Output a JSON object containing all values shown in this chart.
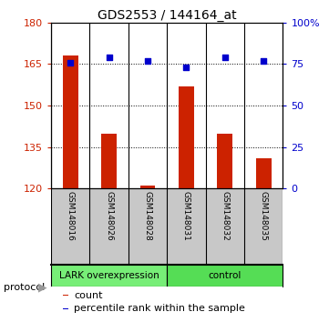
{
  "title": "GDS2553 / 144164_at",
  "samples": [
    "GSM148016",
    "GSM148026",
    "GSM148028",
    "GSM148031",
    "GSM148032",
    "GSM148035"
  ],
  "count_values": [
    168,
    140,
    121,
    157,
    140,
    131
  ],
  "percentile_values": [
    76,
    79,
    77,
    73,
    79,
    77
  ],
  "ylim_left": [
    120,
    180
  ],
  "ylim_right": [
    0,
    100
  ],
  "yticks_left": [
    120,
    135,
    150,
    165,
    180
  ],
  "yticks_right": [
    0,
    25,
    50,
    75,
    100
  ],
  "ytick_labels_right": [
    "0",
    "25",
    "50",
    "75",
    "100%"
  ],
  "bar_color": "#cc2200",
  "scatter_color": "#0000cc",
  "group1_label": "LARK overexpression",
  "group2_label": "control",
  "group1_color": "#77ee77",
  "group2_color": "#55dd55",
  "protocol_label": "protocol",
  "legend_count": "count",
  "legend_pct": "percentile rank within the sample",
  "left_axis_color": "#cc2200",
  "right_axis_color": "#0000cc",
  "bg_color": "#ffffff",
  "plot_bg": "#ffffff",
  "tick_label_area_color": "#c8c8c8",
  "base_value": 120,
  "grid_lines": [
    165,
    150,
    135
  ],
  "bar_width": 0.4
}
